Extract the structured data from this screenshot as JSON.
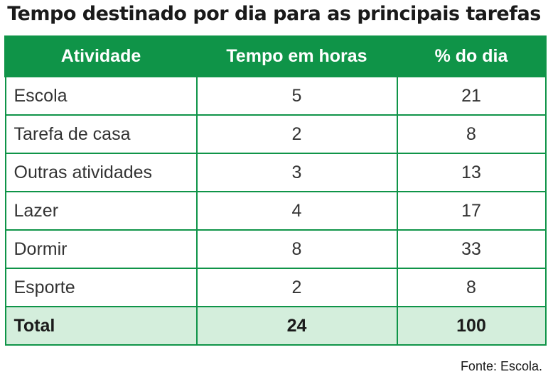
{
  "title": "Tempo destinado por dia para as principais tarefas",
  "table": {
    "headers": [
      "Atividade",
      "Tempo em horas",
      "% do dia"
    ],
    "rows": [
      {
        "activity": "Escola",
        "hours": "5",
        "percent": "21"
      },
      {
        "activity": "Tarefa de casa",
        "hours": "2",
        "percent": "8"
      },
      {
        "activity": "Outras atividades",
        "hours": "3",
        "percent": "13"
      },
      {
        "activity": "Lazer",
        "hours": "4",
        "percent": "17"
      },
      {
        "activity": "Dormir",
        "hours": "8",
        "percent": "33"
      },
      {
        "activity": "Esporte",
        "hours": "2",
        "percent": "8"
      }
    ],
    "total": {
      "label": "Total",
      "hours": "24",
      "percent": "100"
    }
  },
  "source": "Fonte: Escola.",
  "colors": {
    "header_green": "#0f9448",
    "total_row_bg": "#d4eedc"
  }
}
